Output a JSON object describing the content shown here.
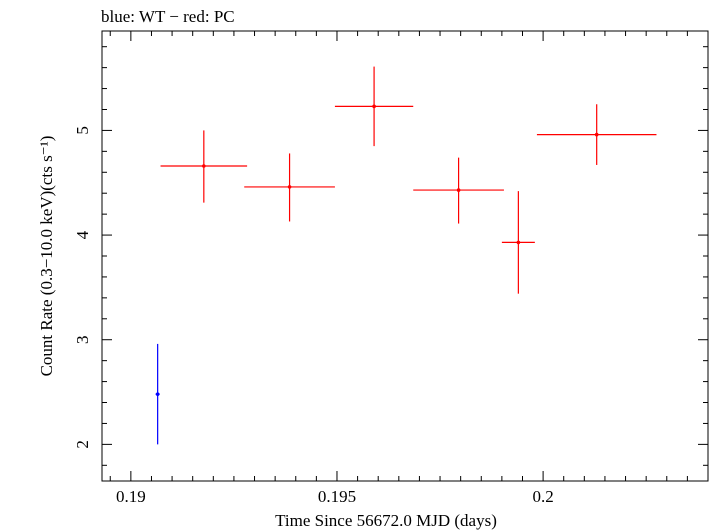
{
  "chart_data": {
    "type": "scatter",
    "title": "blue: WT − red: PC",
    "xlabel": "Time Since 56672.0 MJD (days)",
    "ylabel": "Count Rate (0.3−10.0 keV)(cts s⁻¹)",
    "xlim": [
      0.1893,
      0.204
    ],
    "ylim": [
      1.65,
      5.95
    ],
    "xticks": [
      {
        "value": 0.19,
        "label": "0.19"
      },
      {
        "value": 0.195,
        "label": "0.195"
      },
      {
        "value": 0.2,
        "label": "0.2"
      }
    ],
    "yticks": [
      {
        "value": 2,
        "label": "2"
      },
      {
        "value": 3,
        "label": "3"
      },
      {
        "value": 4,
        "label": "4"
      },
      {
        "value": 5,
        "label": "5"
      }
    ],
    "grid": false,
    "series": [
      {
        "color": "#0000ff",
        "points": [
          {
            "x": 0.19065,
            "xerr": 5e-05,
            "y": 2.48,
            "yerr_lo": 0.48,
            "yerr_hi": 0.48
          }
        ]
      },
      {
        "color": "#ff0000",
        "points": [
          {
            "x": 0.19177,
            "xerr": 0.00105,
            "y": 4.66,
            "yerr_lo": 0.35,
            "yerr_hi": 0.34
          },
          {
            "x": 0.19385,
            "xerr": 0.0011,
            "y": 4.46,
            "yerr_lo": 0.33,
            "yerr_hi": 0.32
          },
          {
            "x": 0.1959,
            "xerr": 0.00095,
            "y": 5.23,
            "yerr_lo": 0.38,
            "yerr_hi": 0.38
          },
          {
            "x": 0.19795,
            "xerr": 0.0011,
            "y": 4.43,
            "yerr_lo": 0.32,
            "yerr_hi": 0.31
          },
          {
            "x": 0.1994,
            "xerr": 0.0004,
            "y": 3.93,
            "yerr_lo": 0.49,
            "yerr_hi": 0.49
          },
          {
            "x": 0.2013,
            "xerr": 0.00145,
            "y": 4.96,
            "yerr_lo": 0.29,
            "yerr_hi": 0.29
          }
        ]
      }
    ]
  }
}
